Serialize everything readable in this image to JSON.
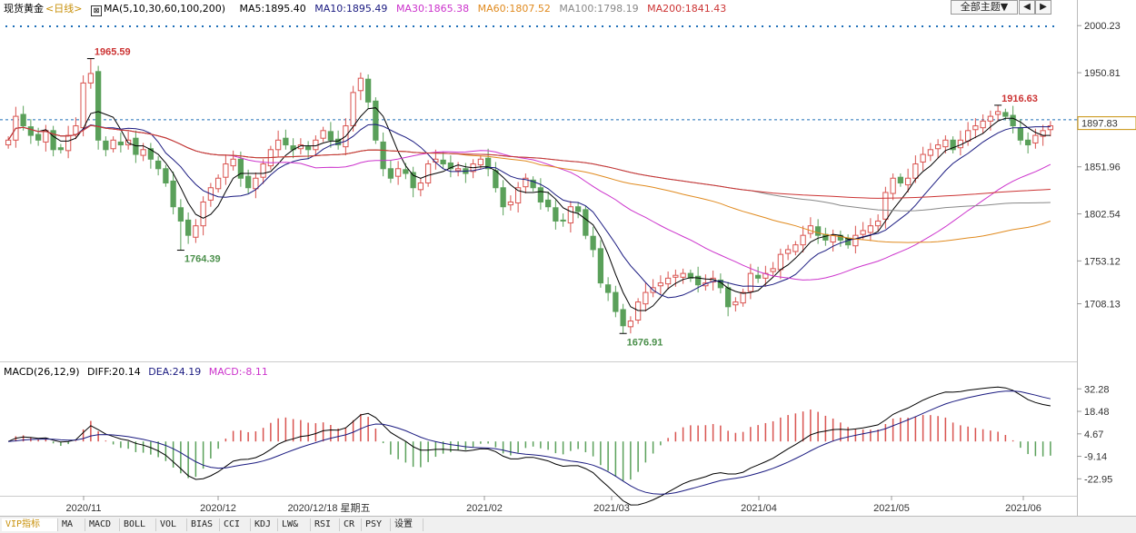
{
  "header": {
    "symbol": "现货黄金",
    "period": "<日线>",
    "ma_params": "MA(5,10,30,60,100,200)",
    "ma5": "MA5:1895.40",
    "ma10": "MA10:1895.49",
    "ma30": "MA30:1865.38",
    "ma60": "MA60:1807.52",
    "ma100": "MA100:1798.19",
    "ma200": "MA200:1841.43",
    "theme_button": "全部主题▼",
    "prev_button": "◀",
    "next_button": "▶"
  },
  "macd_header": {
    "params": "MACD(26,12,9)",
    "diff": "DIFF:20.14",
    "dea": "DEA:24.19",
    "macd": "MACD:-8.11"
  },
  "colors": {
    "up": "#d9534f",
    "down": "#5aa05a",
    "ma5": "#000000",
    "ma10": "#1a1a80",
    "ma30": "#cc33cc",
    "ma60": "#e08a1e",
    "ma100": "#888888",
    "ma200": "#cc3333",
    "dotted_marker": "#1e6fb8"
  },
  "chart_data": {
    "type": "candlestick",
    "title": "现货黄金 日线",
    "price_axis_ticks": [
      "2000.23",
      "1950.81",
      "1901.39",
      "1851.96",
      "1802.54",
      "1753.12",
      "1708.13"
    ],
    "current_price_label": "1897.83",
    "price_reference_line": 1901.39,
    "x_tick_labels": [
      "2020/11",
      "2020/12",
      "2021/02",
      "2021/03",
      "2021/04",
      "2021/05",
      "2021/06"
    ],
    "cursor_date_label": "2020/12/18 星期五",
    "annotations": [
      {
        "label": "1965.59",
        "value": 1965.59,
        "type": "high"
      },
      {
        "label": "1764.39",
        "value": 1764.39,
        "type": "low"
      },
      {
        "label": "1916.63",
        "value": 1916.63,
        "type": "high"
      },
      {
        "label": "1676.91",
        "value": 1676.91,
        "type": "low"
      }
    ],
    "close_path": [
      1880,
      1905,
      1895,
      1885,
      1880,
      1890,
      1870,
      1870,
      1885,
      1895,
      1940,
      1950,
      1880,
      1870,
      1880,
      1875,
      1880,
      1865,
      1870,
      1860,
      1850,
      1835,
      1810,
      1795,
      1780,
      1790,
      1815,
      1830,
      1840,
      1855,
      1860,
      1840,
      1830,
      1840,
      1855,
      1870,
      1880,
      1875,
      1870,
      1875,
      1870,
      1880,
      1890,
      1880,
      1875,
      1895,
      1930,
      1945,
      1920,
      1880,
      1850,
      1840,
      1850,
      1845,
      1830,
      1835,
      1855,
      1860,
      1855,
      1850,
      1850,
      1845,
      1855,
      1860,
      1850,
      1830,
      1810,
      1815,
      1830,
      1840,
      1830,
      1815,
      1810,
      1795,
      1795,
      1810,
      1805,
      1780,
      1765,
      1730,
      1720,
      1700,
      1685,
      1690,
      1710,
      1720,
      1725,
      1730,
      1735,
      1738,
      1740,
      1735,
      1728,
      1730,
      1735,
      1725,
      1705,
      1710,
      1720,
      1740,
      1735,
      1740,
      1745,
      1760,
      1765,
      1770,
      1780,
      1790,
      1780,
      1775,
      1780,
      1775,
      1770,
      1780,
      1785,
      1790,
      1795,
      1825,
      1840,
      1835,
      1840,
      1855,
      1865,
      1870,
      1875,
      1880,
      1870,
      1880,
      1890,
      1895,
      1900,
      1905,
      1910,
      1905,
      1895,
      1880,
      1875,
      1885,
      1890,
      1895
    ],
    "ma_series": [
      {
        "name": "MA5",
        "value": 1895.4
      },
      {
        "name": "MA10",
        "value": 1895.49
      },
      {
        "name": "MA30",
        "value": 1865.38
      },
      {
        "name": "MA60",
        "value": 1807.52
      },
      {
        "name": "MA100",
        "value": 1798.19
      },
      {
        "name": "MA200",
        "value": 1841.43
      }
    ],
    "macd": {
      "params": "MACD(26,12,9)",
      "diff": 20.14,
      "dea": 24.19,
      "macd": -8.11,
      "y_ticks": [
        "32.28",
        "18.48",
        "4.67",
        "-9.14",
        "-22.95"
      ]
    }
  },
  "tabs": [
    "VIP指标",
    "MA",
    "MACD",
    "BOLL",
    "VOL",
    "BIAS",
    "CCI",
    "KDJ",
    "LW&",
    "RSI",
    "CR",
    "PSY",
    "设置"
  ]
}
